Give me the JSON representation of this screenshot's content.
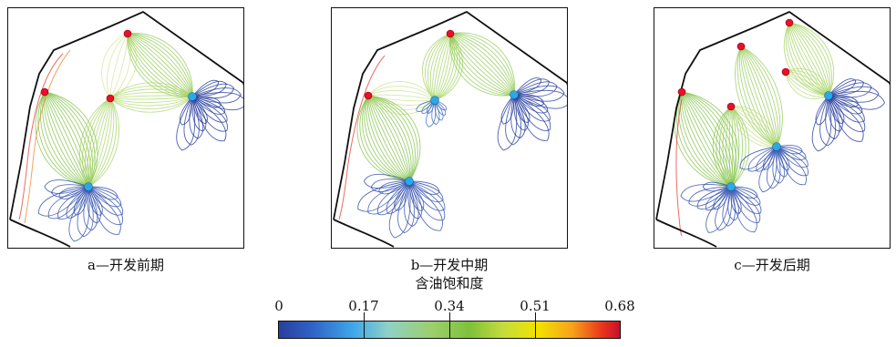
{
  "panels": [
    {
      "id": "a",
      "caption": "a—开发前期"
    },
    {
      "id": "b",
      "caption": "b—开发中期"
    },
    {
      "id": "c",
      "caption": "c—开发后期"
    }
  ],
  "colorbar": {
    "title": "含油饱和度",
    "ticks": [
      "0",
      "0.17",
      "0.34",
      "0.51",
      "0.68"
    ],
    "min": 0,
    "max": 0.68
  },
  "colors": {
    "producer_well": "#e8102a",
    "injector_well": "#2aa9e8",
    "low": "#2a3f9e",
    "mid": "#7fc13a",
    "high": "#d4202a"
  }
}
